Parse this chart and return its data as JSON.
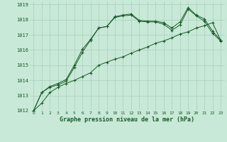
{
  "title": "Graphe pression niveau de la mer (hPa)",
  "background_color": "#c8e8d8",
  "grid_color": "#a8d0b8",
  "line_color": "#1a5c2a",
  "xlim": [
    -0.5,
    23.5
  ],
  "ylim": [
    1012,
    1019.2
  ],
  "yticks": [
    1012,
    1013,
    1014,
    1015,
    1016,
    1017,
    1018,
    1019
  ],
  "xticks": [
    0,
    1,
    2,
    3,
    4,
    5,
    6,
    7,
    8,
    9,
    10,
    11,
    12,
    13,
    14,
    15,
    16,
    17,
    18,
    19,
    20,
    21,
    22,
    23
  ],
  "series": [
    [
      1012.0,
      1012.5,
      1013.2,
      1013.55,
      1013.8,
      1014.0,
      1014.25,
      1014.5,
      1015.0,
      1015.2,
      1015.4,
      1015.55,
      1015.8,
      1016.0,
      1016.2,
      1016.45,
      1016.6,
      1016.8,
      1017.05,
      1017.2,
      1017.45,
      1017.6,
      1017.8,
      1016.65
    ],
    [
      1012.0,
      1013.2,
      1013.6,
      1013.8,
      1014.05,
      1015.0,
      1016.05,
      1016.7,
      1017.45,
      1017.55,
      1018.2,
      1018.3,
      1018.38,
      1017.95,
      1017.9,
      1017.9,
      1017.8,
      1017.45,
      1017.85,
      1018.8,
      1018.3,
      1018.05,
      1017.25,
      1016.65
    ],
    [
      1012.0,
      1013.2,
      1013.55,
      1013.7,
      1013.95,
      1014.85,
      1015.85,
      1016.65,
      1017.45,
      1017.55,
      1018.15,
      1018.25,
      1018.3,
      1017.9,
      1017.85,
      1017.85,
      1017.7,
      1017.3,
      1017.65,
      1018.7,
      1018.25,
      1017.9,
      1017.1,
      1016.6
    ]
  ]
}
